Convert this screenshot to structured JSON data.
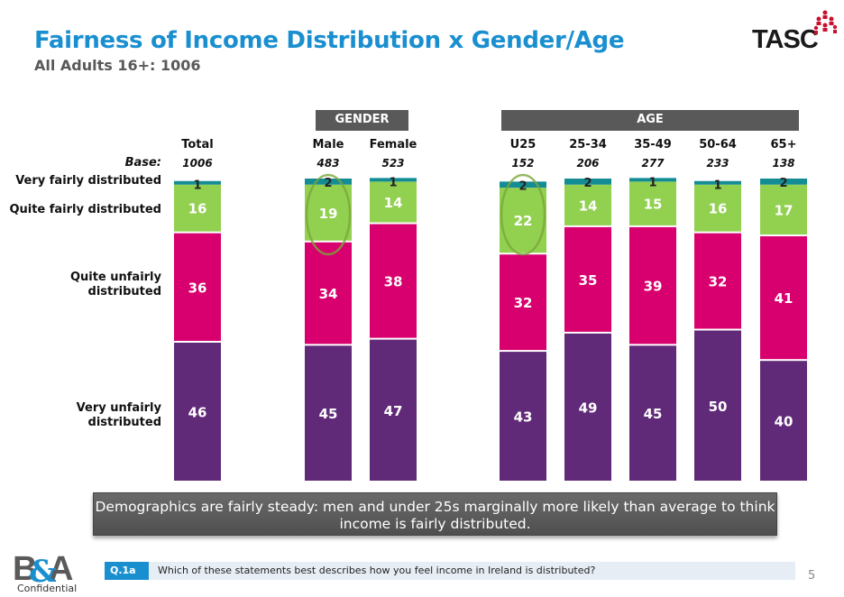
{
  "header": {
    "title": "Fairness of Income Distribution x Gender/Age",
    "subtitle": "All Adults 16+: 1006",
    "logo_text": "TASC"
  },
  "group_headers": {
    "gender": "GENDER",
    "age": "AGE"
  },
  "base_label": "Base:",
  "row_labels": {
    "very_fair": "Very fairly distributed",
    "quite_fair": "Quite fairly distributed",
    "quite_unfair_1": "Quite unfairly",
    "quite_unfair_2": "distributed",
    "very_unfair_1": "Very unfairly",
    "very_unfair_2": "distributed"
  },
  "columns": [
    {
      "label": "Total",
      "base": "1006"
    },
    {
      "label": "Male",
      "base": "483"
    },
    {
      "label": "Female",
      "base": "523"
    },
    {
      "label": "U25",
      "base": "152"
    },
    {
      "label": "25-34",
      "base": "206"
    },
    {
      "label": "35-49",
      "base": "277"
    },
    {
      "label": "50-64",
      "base": "233"
    },
    {
      "label": "65+",
      "base": "138"
    }
  ],
  "chart_data": {
    "type": "bar",
    "stacked": true,
    "orientation": "vertical",
    "title": "Fairness of Income Distribution x Gender/Age",
    "subtitle": "All Adults 16+: 1006",
    "categories": [
      "Total",
      "Male",
      "Female",
      "U25",
      "25-34",
      "35-49",
      "50-64",
      "65+"
    ],
    "category_groups": [
      {
        "name": "",
        "categories": [
          "Total"
        ]
      },
      {
        "name": "GENDER",
        "categories": [
          "Male",
          "Female"
        ]
      },
      {
        "name": "AGE",
        "categories": [
          "U25",
          "25-34",
          "35-49",
          "50-64",
          "65+"
        ]
      }
    ],
    "bases": [
      1006,
      483,
      523,
      152,
      206,
      277,
      233,
      138
    ],
    "series": [
      {
        "name": "Very unfairly distributed",
        "color": "#612a78",
        "values": [
          46,
          45,
          47,
          43,
          49,
          45,
          50,
          40
        ]
      },
      {
        "name": "Quite unfairly distributed",
        "color": "#d8006e",
        "values": [
          36,
          34,
          38,
          32,
          35,
          39,
          32,
          41
        ]
      },
      {
        "name": "Quite fairly distributed",
        "color": "#92d050",
        "values": [
          16,
          19,
          14,
          22,
          14,
          15,
          16,
          17
        ]
      },
      {
        "name": "Very fairly distributed",
        "color": "#138c94",
        "values": [
          1,
          2,
          1,
          2,
          2,
          1,
          1,
          2
        ]
      }
    ],
    "highlighted": [
      "Male",
      "U25"
    ],
    "unit": "%",
    "xlabel": "",
    "ylabel": ""
  },
  "callout": "Demographics are fairly steady: men and under 25s marginally more likely than average to think income is fairly distributed.",
  "footer": {
    "question_tag": "Q.1a",
    "question_text": "Which of these statements best describes how you feel income in Ireland is distributed?",
    "page_number": "5",
    "confidential": "Confidential"
  }
}
